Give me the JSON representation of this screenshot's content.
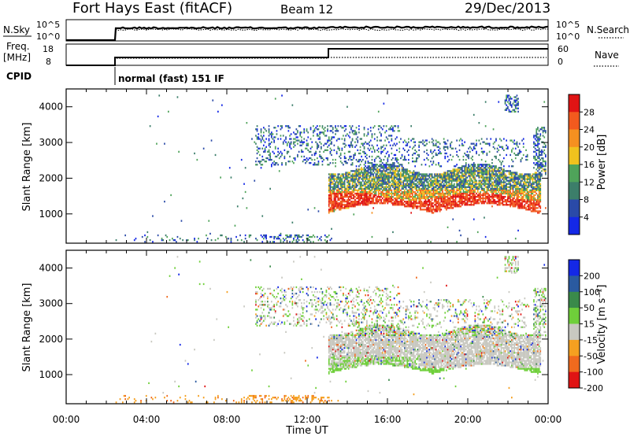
{
  "header": {
    "station": "Fort Hays East (fitACF)",
    "beam": "Beam 12",
    "date": "29/Dec/2013"
  },
  "strip": {
    "nsky_label": "N.Sky",
    "nsky_ticks": [
      "10^5",
      "10^0"
    ],
    "nsearch_ticks": [
      "10^5",
      "10^0"
    ],
    "nsearch_label": "N.Search",
    "freq_label_1": "Freq.",
    "freq_label_2": "[MHz]",
    "freq_ticks": [
      "18",
      "8"
    ],
    "nave_ticks": [
      "60",
      "0"
    ],
    "nave_label": "Nave",
    "cpid_label": "CPID",
    "cpid_text": "normal (fast) 151 IF"
  },
  "chart_data": [
    {
      "type": "heatmap",
      "title": "",
      "xlabel": "",
      "ylabel": "Slant Range [km]",
      "xlim": [
        0,
        24
      ],
      "ylim": [
        180,
        4500
      ],
      "y_ticks": [
        "1000",
        "2000",
        "3000",
        "4000"
      ],
      "colorbar": {
        "label": "Power [dB]",
        "ticks": [
          "4",
          "8",
          "12",
          "16",
          "20",
          "24",
          "28"
        ],
        "colors": [
          "#1428e6",
          "#2a4aa8",
          "#3c7e6a",
          "#4fa35a",
          "#f0c21e",
          "#f59020",
          "#f25a1e",
          "#e01414"
        ]
      },
      "regions": [
        {
          "x": [
            13.0,
            23.6
          ],
          "y": [
            900,
            1700
          ],
          "level": "high"
        },
        {
          "x": [
            13.0,
            23.6
          ],
          "y": [
            1700,
            2300
          ],
          "level": "medium"
        },
        {
          "x": [
            9.5,
            16.5
          ],
          "y": [
            2400,
            3400
          ],
          "level": "low"
        },
        {
          "x": [
            2.2,
            13.0
          ],
          "y": [
            180,
            400
          ],
          "level": "low"
        }
      ]
    },
    {
      "type": "heatmap",
      "title": "",
      "xlabel": "Time UT",
      "ylabel": "Slant Range [km]",
      "xlim": [
        0,
        24
      ],
      "ylim": [
        180,
        4500
      ],
      "x_ticks": [
        "00:00",
        "04:00",
        "08:00",
        "12:00",
        "16:00",
        "20:00",
        "00:00"
      ],
      "y_ticks": [
        "1000",
        "2000",
        "3000",
        "4000"
      ],
      "colorbar": {
        "label": "Velocity [m s⁻¹]",
        "ticks": [
          "200",
          "100",
          "50",
          "15",
          "-15",
          "-50",
          "-100",
          "-200"
        ],
        "colors": [
          "#1428e6",
          "#2a5aa0",
          "#3a8a4a",
          "#6fcf3a",
          "#c8c8c0",
          "#f5a020",
          "#f06a1e",
          "#e01414"
        ]
      },
      "regions": [
        {
          "x": [
            13.0,
            23.6
          ],
          "y": [
            1200,
            2050
          ],
          "level": "ground"
        },
        {
          "x": [
            13.0,
            18.0
          ],
          "y": [
            1000,
            2200
          ],
          "level": "positive"
        },
        {
          "x": [
            9.5,
            16.5
          ],
          "y": [
            2400,
            3400
          ],
          "level": "mixed"
        },
        {
          "x": [
            2.2,
            13.0
          ],
          "y": [
            180,
            400
          ],
          "level": "negative"
        }
      ]
    }
  ]
}
